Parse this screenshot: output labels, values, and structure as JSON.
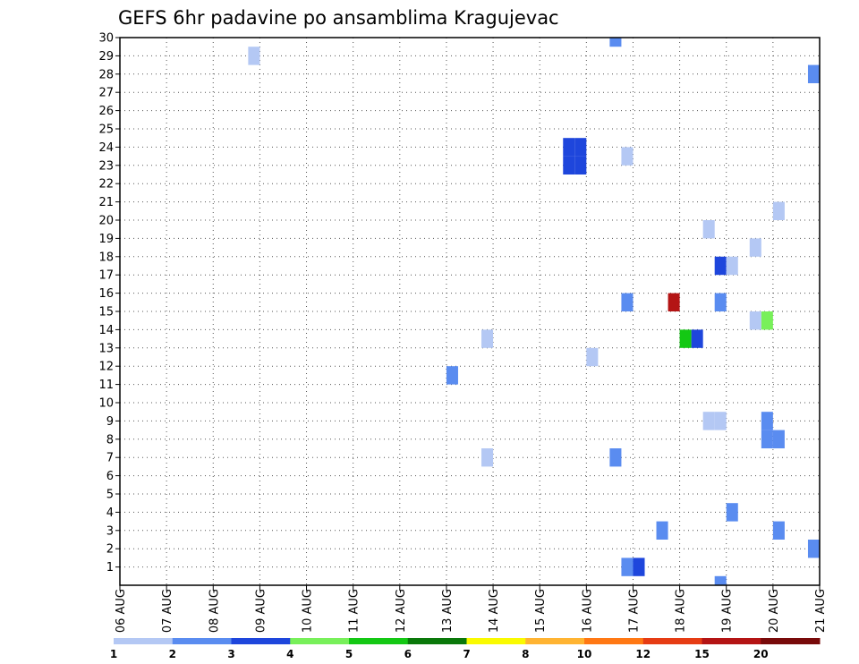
{
  "chart_data": {
    "type": "heatmap",
    "title": "GEFS 6hr padavine po ansamblima Kragujevac",
    "x_tick_labels": [
      "06 AUG",
      "07 AUG",
      "08 AUG",
      "09 AUG",
      "10 AUG",
      "11 AUG",
      "12 AUG",
      "13 AUG",
      "14 AUG",
      "15 AUG",
      "16 AUG",
      "17 AUG",
      "18 AUG",
      "19 AUG",
      "20 AUG",
      "21 AUG"
    ],
    "y_tick_labels": [
      "1",
      "2",
      "3",
      "4",
      "5",
      "6",
      "7",
      "8",
      "9",
      "10",
      "11",
      "12",
      "13",
      "14",
      "15",
      "16",
      "17",
      "18",
      "19",
      "20",
      "21",
      "22",
      "23",
      "24",
      "25",
      "26",
      "27",
      "28",
      "29",
      "30"
    ],
    "xlim_days": [
      6,
      21
    ],
    "ylim_members": [
      0,
      30
    ],
    "grid": true,
    "colorbar": {
      "labels": [
        "1",
        "2",
        "3",
        "4",
        "5",
        "6",
        "7",
        "8",
        "10",
        "12",
        "15",
        "20"
      ],
      "colors": [
        "#b4c8f4",
        "#5a8cf0",
        "#1e46dc",
        "#78f05a",
        "#14c814",
        "#0a780a",
        "#fafa00",
        "#ffb432",
        "#ff7814",
        "#e63c14",
        "#b41414",
        "#780a0a"
      ]
    },
    "cells": [
      {
        "day": 8.875,
        "member": 29,
        "level": 1
      },
      {
        "day": 16.625,
        "member": 30,
        "level": 2
      },
      {
        "day": 20.875,
        "member": 28,
        "level": 2
      },
      {
        "day": 15.625,
        "member": 24,
        "level": 3
      },
      {
        "day": 15.625,
        "member": 23,
        "level": 3
      },
      {
        "day": 15.875,
        "member": 24,
        "level": 3
      },
      {
        "day": 15.875,
        "member": 23,
        "level": 3
      },
      {
        "day": 16.875,
        "member": 23.5,
        "level": 1
      },
      {
        "day": 20.125,
        "member": 20.5,
        "level": 1
      },
      {
        "day": 18.625,
        "member": 19.5,
        "level": 1
      },
      {
        "day": 19.625,
        "member": 18.5,
        "level": 1
      },
      {
        "day": 18.875,
        "member": 17.5,
        "level": 3
      },
      {
        "day": 19.125,
        "member": 17.5,
        "level": 1
      },
      {
        "day": 16.875,
        "member": 15.5,
        "level": 2
      },
      {
        "day": 17.875,
        "member": 15.5,
        "level": 11
      },
      {
        "day": 18.875,
        "member": 15.5,
        "level": 2
      },
      {
        "day": 19.625,
        "member": 14.5,
        "level": 1
      },
      {
        "day": 19.875,
        "member": 14.5,
        "level": 4
      },
      {
        "day": 13.875,
        "member": 13.5,
        "level": 1
      },
      {
        "day": 18.125,
        "member": 13.5,
        "level": 5
      },
      {
        "day": 18.375,
        "member": 13.5,
        "level": 3
      },
      {
        "day": 16.125,
        "member": 12.5,
        "level": 1
      },
      {
        "day": 13.125,
        "member": 11.5,
        "level": 2
      },
      {
        "day": 18.625,
        "member": 9,
        "level": 1
      },
      {
        "day": 18.875,
        "member": 9,
        "level": 1
      },
      {
        "day": 19.875,
        "member": 9,
        "level": 2
      },
      {
        "day": 19.875,
        "member": 8,
        "level": 2
      },
      {
        "day": 20.125,
        "member": 8,
        "level": 2
      },
      {
        "day": 13.875,
        "member": 7,
        "level": 1
      },
      {
        "day": 16.625,
        "member": 7,
        "level": 2
      },
      {
        "day": 19.125,
        "member": 4,
        "level": 2
      },
      {
        "day": 17.625,
        "member": 3,
        "level": 2
      },
      {
        "day": 20.125,
        "member": 3,
        "level": 2
      },
      {
        "day": 20.875,
        "member": 2,
        "level": 2
      },
      {
        "day": 16.875,
        "member": 1,
        "level": 2
      },
      {
        "day": 17.125,
        "member": 1,
        "level": 3
      },
      {
        "day": 18.875,
        "member": 0,
        "level": 2
      }
    ]
  }
}
